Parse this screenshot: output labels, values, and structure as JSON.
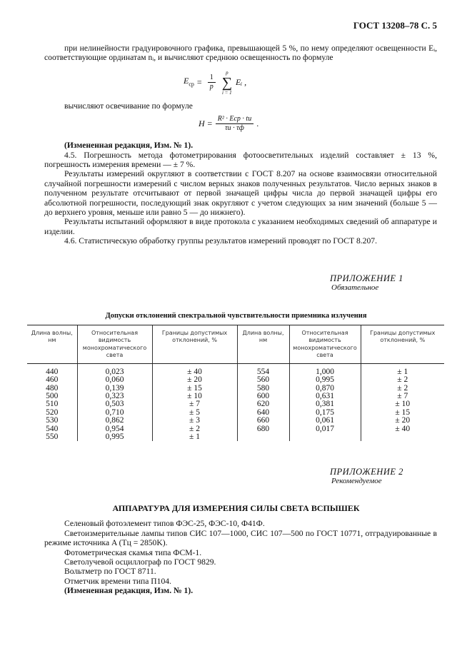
{
  "header": "ГОСТ 13208–78 С. 5",
  "para1": "при нелинейности градуировочного графика, превышающей 5 %, по нему определяют освещенности Eᵢ, соответствующие ординатам nᵢ, и вычисляют среднюю освещенность по формуле",
  "formula1": {
    "lhs": "E",
    "lhs_sub": "ср",
    "eq": "=",
    "frac_num": "1",
    "frac_den": "p",
    "sum_top": "p",
    "sum_bottom": "i = 1",
    "term": "Eᵢ ,"
  },
  "para2": "вычисляют освечивание по формуле",
  "formula2": {
    "lhs": "H =",
    "numerator": "R² · Eср · tи",
    "denominator": "τи · τф",
    "tail": "."
  },
  "amend1": "(Измененная редакция, Изм. № 1).",
  "p45": "4.5. Погрешность метода фотометрирования фотоосветительных изделий составляет ± 13 %, погрешность измерения времени — ± 7 %.",
  "p_round": "Результаты измерений округляют в соответствии с ГОСТ 8.207 на основе взаимосвязи относительной случайной погрешности измерений с числом верных знаков полученных результатов. Число верных знаков в полученном результате отсчитывают от первой значащей цифры числа до первой значащей цифры его абсолютной погрешности, последующий знак округляют с учетом следующих за ним значений (больше 5 — до верхнего уровня, меньше или равно 5 — до нижнего).",
  "p_results": "Результаты испытаний оформляют в виде протокола с указанием необходимых сведений об аппаратуре и изделии.",
  "p46": "4.6. Статистическую обработку группы результатов измерений проводят по ГОСТ 8.207.",
  "appendix1": {
    "title": "ПРИЛОЖЕНИЕ 1",
    "status": "Обязательное"
  },
  "table_caption": "Допуски отклонений спектральной чувствительности приемника излучения",
  "table": {
    "headers": [
      "Длина волны, нм",
      "Относительная видимость монохроматического света",
      "Границы допустимых отклонений, %",
      "Длина волны, нм",
      "Относительная видимость монохроматического света",
      "Границы допустимых отклонений, %"
    ],
    "rows": [
      [
        "440",
        "0,023",
        "± 40",
        "554",
        "1,000",
        "± 1"
      ],
      [
        "460",
        "0,060",
        "± 20",
        "560",
        "0,995",
        "± 2"
      ],
      [
        "480",
        "0,139",
        "± 15",
        "580",
        "0,870",
        "± 2"
      ],
      [
        "500",
        "0,323",
        "± 10",
        "600",
        "0,631",
        "± 7"
      ],
      [
        "510",
        "0,503",
        "± 7",
        "620",
        "0,381",
        "± 10"
      ],
      [
        "520",
        "0,710",
        "± 5",
        "640",
        "0,175",
        "± 15"
      ],
      [
        "530",
        "0,862",
        "± 3",
        "660",
        "0,061",
        "± 20"
      ],
      [
        "540",
        "0,954",
        "± 2",
        "680",
        "0,017",
        "± 40"
      ],
      [
        "550",
        "0,995",
        "± 1",
        "",
        "",
        ""
      ]
    ]
  },
  "appendix2": {
    "title": "ПРИЛОЖЕНИЕ 2",
    "status": "Рекомендуемое"
  },
  "section_title": "АППАРАТУРА ДЛЯ ИЗМЕРЕНИЯ СИЛЫ СВЕТА ВСПЫШЕК",
  "equipment": [
    "Селеновый фотоэлемент типов ФЭС-25, ФЭС-10, Ф41Ф.",
    "Светоизмерительные лампы типов СИС 107—1000, СИС 107—500 по ГОСТ 10771, отградуированные в режиме источника A (Tц = 2850K).",
    "Фотометрическая скамья типа ФСМ-1.",
    "Светолучевой осциллограф по ГОСТ 9829.",
    "Вольтметр по ГОСТ 8711.",
    "Отметчик времени типа П104."
  ],
  "amend2": "(Измененная редакция, Изм. № 1)."
}
